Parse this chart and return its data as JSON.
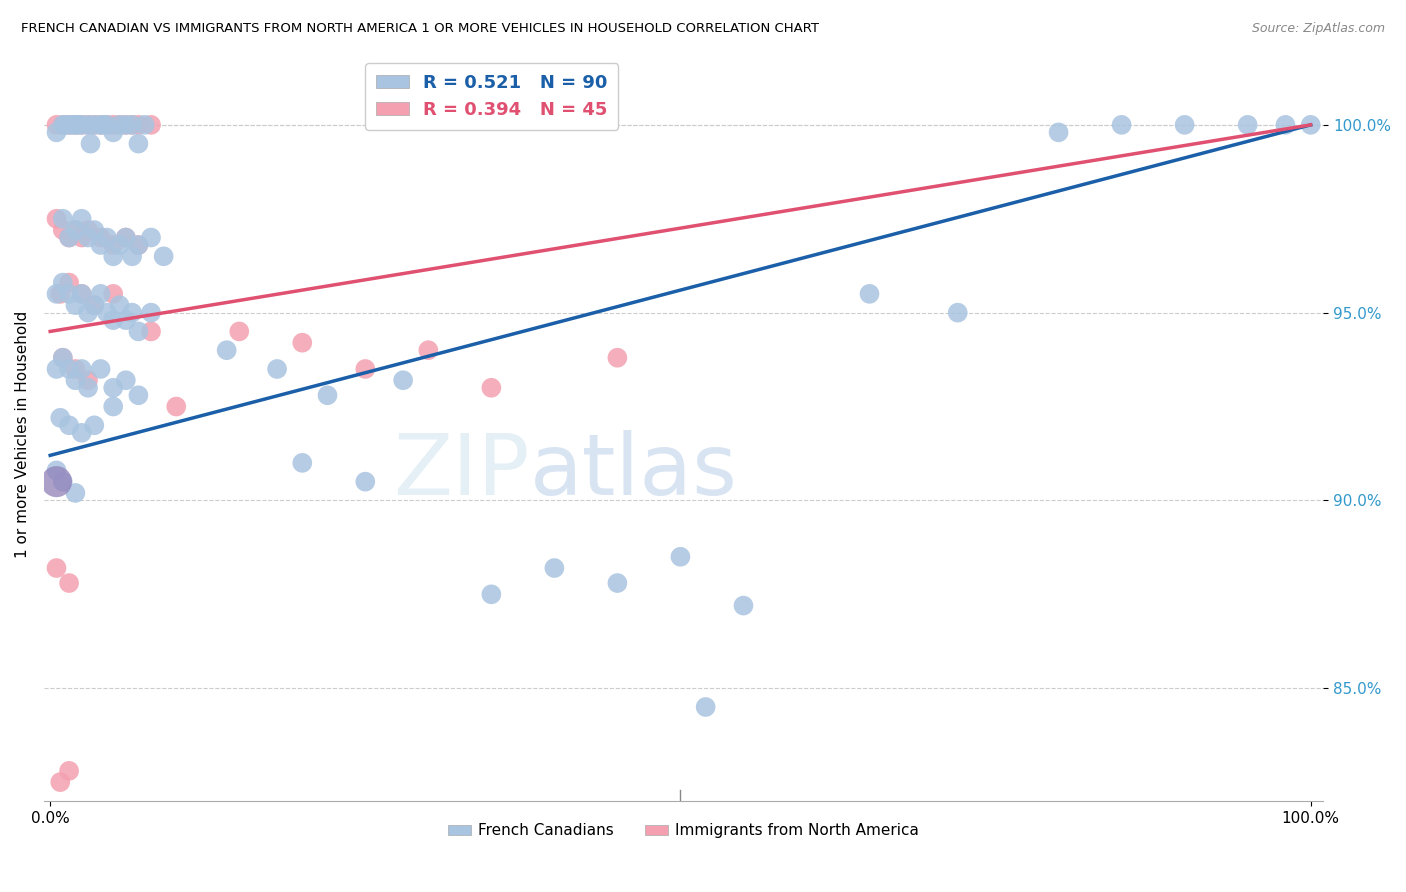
{
  "title": "FRENCH CANADIAN VS IMMIGRANTS FROM NORTH AMERICA 1 OR MORE VEHICLES IN HOUSEHOLD CORRELATION CHART",
  "source": "Source: ZipAtlas.com",
  "ylabel": "1 or more Vehicles in Household",
  "legend_blue_label": "French Canadians",
  "legend_pink_label": "Immigrants from North America",
  "r_blue": 0.521,
  "n_blue": 90,
  "r_pink": 0.394,
  "n_pink": 45,
  "blue_color": "#a8c4e0",
  "pink_color": "#f4a0b0",
  "trend_blue": "#1a5fa8",
  "trend_pink": "#e05070",
  "blue_pts": [
    [
      0.5,
      99.8
    ],
    [
      1.0,
      100.0
    ],
    [
      1.2,
      100.0
    ],
    [
      1.5,
      100.0
    ],
    [
      1.8,
      100.0
    ],
    [
      2.0,
      100.0
    ],
    [
      2.2,
      100.0
    ],
    [
      2.5,
      100.0
    ],
    [
      3.0,
      100.0
    ],
    [
      3.2,
      99.5
    ],
    [
      3.5,
      100.0
    ],
    [
      4.0,
      100.0
    ],
    [
      4.2,
      100.0
    ],
    [
      4.5,
      100.0
    ],
    [
      5.0,
      99.8
    ],
    [
      5.5,
      100.0
    ],
    [
      6.0,
      100.0
    ],
    [
      6.5,
      100.0
    ],
    [
      7.0,
      99.5
    ],
    [
      7.5,
      100.0
    ],
    [
      1.0,
      97.5
    ],
    [
      1.5,
      97.0
    ],
    [
      2.0,
      97.2
    ],
    [
      2.5,
      97.5
    ],
    [
      3.0,
      97.0
    ],
    [
      3.5,
      97.2
    ],
    [
      4.0,
      96.8
    ],
    [
      4.5,
      97.0
    ],
    [
      5.0,
      96.5
    ],
    [
      5.5,
      96.8
    ],
    [
      6.0,
      97.0
    ],
    [
      6.5,
      96.5
    ],
    [
      7.0,
      96.8
    ],
    [
      8.0,
      97.0
    ],
    [
      9.0,
      96.5
    ],
    [
      0.5,
      95.5
    ],
    [
      1.0,
      95.8
    ],
    [
      1.5,
      95.5
    ],
    [
      2.0,
      95.2
    ],
    [
      2.5,
      95.5
    ],
    [
      3.0,
      95.0
    ],
    [
      3.5,
      95.2
    ],
    [
      4.0,
      95.5
    ],
    [
      4.5,
      95.0
    ],
    [
      5.0,
      94.8
    ],
    [
      5.5,
      95.2
    ],
    [
      6.0,
      94.8
    ],
    [
      6.5,
      95.0
    ],
    [
      7.0,
      94.5
    ],
    [
      8.0,
      95.0
    ],
    [
      0.5,
      93.5
    ],
    [
      1.0,
      93.8
    ],
    [
      1.5,
      93.5
    ],
    [
      2.0,
      93.2
    ],
    [
      2.5,
      93.5
    ],
    [
      3.0,
      93.0
    ],
    [
      4.0,
      93.5
    ],
    [
      5.0,
      93.0
    ],
    [
      6.0,
      93.2
    ],
    [
      7.0,
      92.8
    ],
    [
      0.8,
      92.2
    ],
    [
      1.5,
      92.0
    ],
    [
      2.5,
      91.8
    ],
    [
      3.5,
      92.0
    ],
    [
      5.0,
      92.5
    ],
    [
      1.0,
      90.5
    ],
    [
      2.0,
      90.2
    ],
    [
      0.5,
      90.8
    ],
    [
      14.0,
      94.0
    ],
    [
      18.0,
      93.5
    ],
    [
      22.0,
      92.8
    ],
    [
      28.0,
      93.2
    ],
    [
      35.0,
      87.5
    ],
    [
      40.0,
      88.2
    ],
    [
      45.0,
      87.8
    ],
    [
      50.0,
      88.5
    ],
    [
      55.0,
      87.2
    ],
    [
      52.0,
      84.5
    ],
    [
      65.0,
      95.5
    ],
    [
      72.0,
      95.0
    ],
    [
      80.0,
      99.8
    ],
    [
      85.0,
      100.0
    ],
    [
      90.0,
      100.0
    ],
    [
      95.0,
      100.0
    ],
    [
      98.0,
      100.0
    ],
    [
      100.0,
      100.0
    ],
    [
      20.0,
      91.0
    ],
    [
      25.0,
      90.5
    ]
  ],
  "pink_pts": [
    [
      0.5,
      100.0
    ],
    [
      1.0,
      100.0
    ],
    [
      1.5,
      100.0
    ],
    [
      2.0,
      100.0
    ],
    [
      2.5,
      100.0
    ],
    [
      3.0,
      100.0
    ],
    [
      3.5,
      100.0
    ],
    [
      4.0,
      100.0
    ],
    [
      4.5,
      100.0
    ],
    [
      5.0,
      100.0
    ],
    [
      5.5,
      100.0
    ],
    [
      6.0,
      100.0
    ],
    [
      6.5,
      100.0
    ],
    [
      7.0,
      100.0
    ],
    [
      8.0,
      100.0
    ],
    [
      0.5,
      97.5
    ],
    [
      1.0,
      97.2
    ],
    [
      1.5,
      97.0
    ],
    [
      2.0,
      97.2
    ],
    [
      2.5,
      97.0
    ],
    [
      3.0,
      97.2
    ],
    [
      4.0,
      97.0
    ],
    [
      5.0,
      96.8
    ],
    [
      6.0,
      97.0
    ],
    [
      7.0,
      96.8
    ],
    [
      0.8,
      95.5
    ],
    [
      1.5,
      95.8
    ],
    [
      2.5,
      95.5
    ],
    [
      3.5,
      95.2
    ],
    [
      5.0,
      95.5
    ],
    [
      1.0,
      93.8
    ],
    [
      2.0,
      93.5
    ],
    [
      3.0,
      93.2
    ],
    [
      8.0,
      94.5
    ],
    [
      15.0,
      94.5
    ],
    [
      20.0,
      94.2
    ],
    [
      30.0,
      94.0
    ],
    [
      45.0,
      93.8
    ],
    [
      0.5,
      88.2
    ],
    [
      1.5,
      87.8
    ],
    [
      10.0,
      92.5
    ],
    [
      0.8,
      82.5
    ],
    [
      1.5,
      82.8
    ],
    [
      25.0,
      93.5
    ],
    [
      35.0,
      93.0
    ]
  ],
  "y_min": 82.0,
  "y_max": 101.5,
  "x_min": -0.5,
  "x_max": 101.0,
  "yticks": [
    85.0,
    90.0,
    95.0,
    100.0
  ],
  "ytick_labels": [
    "85.0%",
    "90.0%",
    "95.0%",
    "100.0%"
  ],
  "blue_trend_x0": 0.0,
  "blue_trend_y0": 91.2,
  "blue_trend_x1": 100.0,
  "blue_trend_y1": 100.0,
  "pink_trend_x0": 0.0,
  "pink_trend_y0": 94.5,
  "pink_trend_x1": 100.0,
  "pink_trend_y1": 100.0,
  "purple_dot_x": 0.5,
  "purple_dot_y": 90.5,
  "purple_dot_size": 500
}
